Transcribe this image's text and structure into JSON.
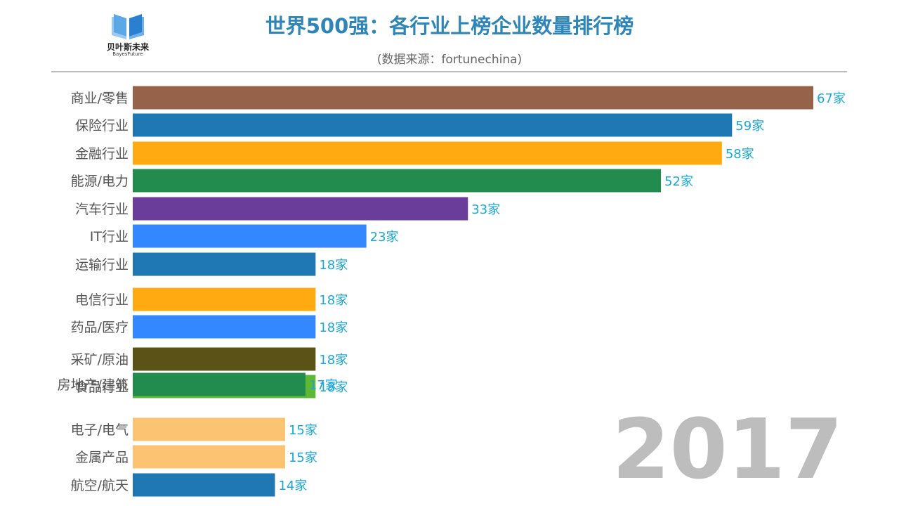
{
  "header": {
    "logo_name": "贝叶斯未来",
    "logo_sub": "BayesFuture",
    "title": "世界500强：各行业上榜企业数量排行榜",
    "subtitle": "(数据来源：fortunechina)"
  },
  "year_label": "2017",
  "colors": {
    "title": "#2e86b8",
    "value_label": "#1aa7d8",
    "year": "#bdbdbd"
  },
  "chart_data": {
    "type": "bar",
    "orientation": "horizontal",
    "title": "世界500强：各行业上榜企业数量排行榜",
    "subtitle": "(数据来源：fortunechina)",
    "value_suffix": "家",
    "xlim": [
      0,
      67
    ],
    "grid": false,
    "bars": [
      {
        "category": "商业/零售",
        "value": 67,
        "label": "67家",
        "color": "#96624a"
      },
      {
        "category": "保险行业",
        "value": 59,
        "label": "59家",
        "color": "#1f77b4"
      },
      {
        "category": "金融行业",
        "value": 58,
        "label": "58家",
        "color": "#ffaa11"
      },
      {
        "category": "能源/电力",
        "value": 52,
        "label": "52家",
        "color": "#228b4e"
      },
      {
        "category": "汽车行业",
        "value": 33,
        "label": "33家",
        "color": "#6a3d9a"
      },
      {
        "category": "IT行业",
        "value": 23,
        "label": "23家",
        "color": "#3388ff"
      },
      {
        "category": "运输行业",
        "value": 18,
        "label": "18家",
        "color": "#1f77b4"
      },
      {
        "category": "电信行业",
        "value": 18,
        "label": "18家",
        "color": "#ffaa11"
      },
      {
        "category": "药品/医疗",
        "value": 18,
        "label": "18家",
        "color": "#3388ff"
      },
      {
        "category": "采矿/原油",
        "value": 18,
        "label": "18家",
        "color": "#5b5216"
      },
      {
        "category": "食品行业",
        "value": 18,
        "label": "18家",
        "color": "#5db833"
      },
      {
        "category": "房地产/建筑",
        "value": 17,
        "label": "17家",
        "color": "#228b4e"
      },
      {
        "category": "电子/电气",
        "value": 15,
        "label": "15家",
        "color": "#fbc372"
      },
      {
        "category": "金属产品",
        "value": 15,
        "label": "15家",
        "color": "#fbc372"
      },
      {
        "category": "航空/航天",
        "value": 14,
        "label": "14家",
        "color": "#1f77b4"
      }
    ]
  }
}
